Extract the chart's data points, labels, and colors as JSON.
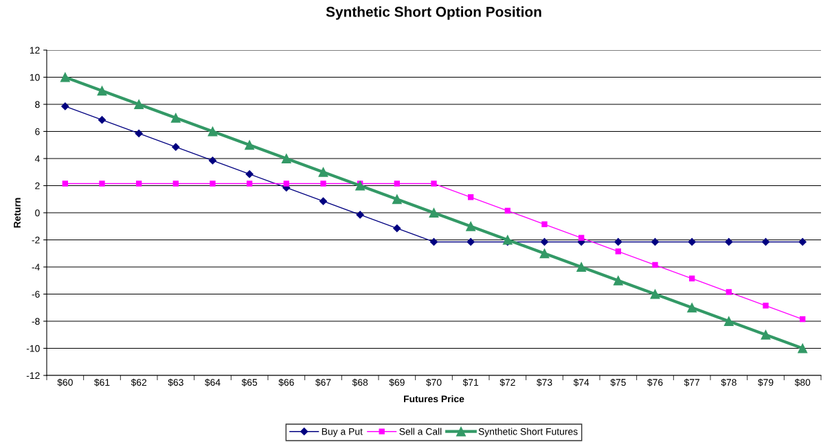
{
  "chart_data": {
    "type": "line",
    "title": "Synthetic Short Option Position",
    "xlabel": "Futures Price",
    "ylabel": "Return",
    "categories": [
      "$60",
      "$61",
      "$62",
      "$63",
      "$64",
      "$65",
      "$66",
      "$67",
      "$68",
      "$69",
      "$70",
      "$71",
      "$72",
      "$73",
      "$74",
      "$75",
      "$76",
      "$77",
      "$78",
      "$79",
      "$80"
    ],
    "series": [
      {
        "name": "Buy a Put",
        "color": "#000080",
        "marker": "diamond",
        "values": [
          7.85,
          6.85,
          5.85,
          4.85,
          3.85,
          2.85,
          1.85,
          0.85,
          -0.15,
          -1.15,
          -2.15,
          -2.15,
          -2.15,
          -2.15,
          -2.15,
          -2.15,
          -2.15,
          -2.15,
          -2.15,
          -2.15,
          -2.15
        ]
      },
      {
        "name": "Sell a Call",
        "color": "#ff00ff",
        "marker": "square",
        "values": [
          2.15,
          2.15,
          2.15,
          2.15,
          2.15,
          2.15,
          2.15,
          2.15,
          2.15,
          2.15,
          2.15,
          1.15,
          0.15,
          -0.85,
          -1.85,
          -2.85,
          -3.85,
          -4.85,
          -5.85,
          -6.85,
          -7.85
        ]
      },
      {
        "name": "Synthetic Short Futures",
        "color": "#339966",
        "marker": "triangle",
        "values": [
          10,
          9,
          8,
          7,
          6,
          5,
          4,
          3,
          2,
          1,
          0,
          -1,
          -2,
          -3,
          -4,
          -5,
          -6,
          -7,
          -8,
          -9,
          -10
        ]
      }
    ],
    "ylim": [
      -12,
      12
    ],
    "yticks": [
      -12,
      -10,
      -8,
      -6,
      -4,
      -2,
      0,
      2,
      4,
      6,
      8,
      10,
      12
    ],
    "grid": "y",
    "legend": "bottom"
  }
}
